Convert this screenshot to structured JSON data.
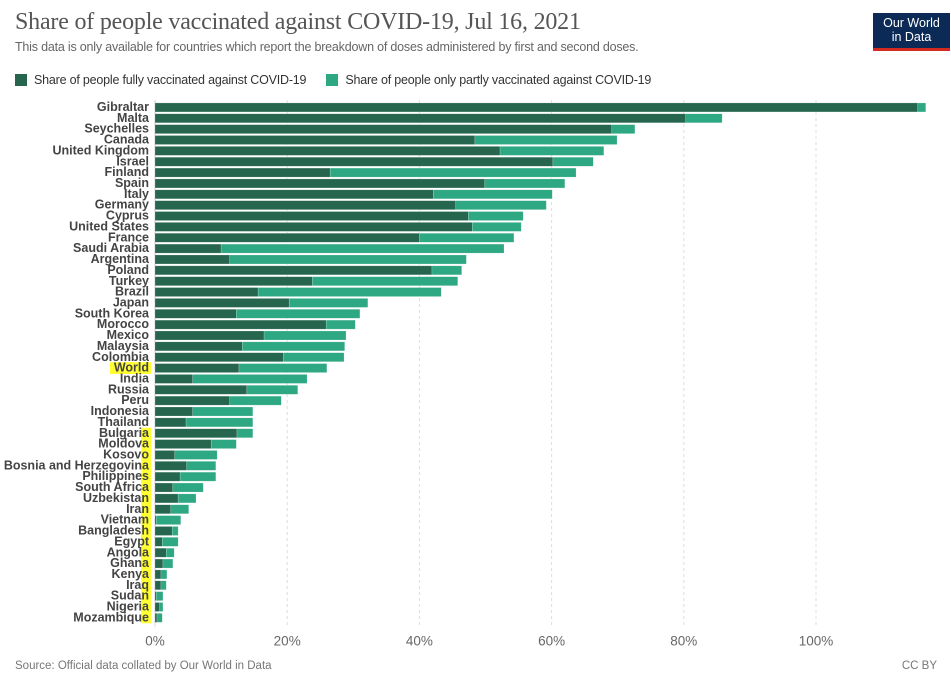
{
  "header": {
    "title": "Share of people vaccinated against COVID-19, Jul 16, 2021",
    "subtitle": "This data is only available for countries which report the breakdown of doses administered by first and second doses.",
    "logo_line1": "Our World",
    "logo_line2": "in Data",
    "logo_colors": {
      "background": "#0b2a56",
      "underline": "#d42b21"
    }
  },
  "footer": {
    "source": "Source: Official data collated by Our World in Data",
    "license": "CC BY"
  },
  "highlight_color": "#ffff33",
  "chart_data": {
    "type": "bar",
    "orientation": "horizontal",
    "stacked": true,
    "title": "Share of people vaccinated against COVID-19, Jul 16, 2021",
    "xlabel": "",
    "ylabel": "",
    "xlim": [
      0,
      117
    ],
    "xticks": [
      0,
      20,
      40,
      60,
      80,
      100
    ],
    "xtick_labels": [
      "0%",
      "20%",
      "40%",
      "60%",
      "80%",
      "100%"
    ],
    "grid": "vertical dashed",
    "legend_position": "top-left",
    "categories": [
      "Gibraltar",
      "Malta",
      "Seychelles",
      "Canada",
      "United Kingdom",
      "Israel",
      "Finland",
      "Spain",
      "Italy",
      "Germany",
      "Cyprus",
      "United States",
      "France",
      "Saudi Arabia",
      "Argentina",
      "Poland",
      "Turkey",
      "Brazil",
      "Japan",
      "South Korea",
      "Morocco",
      "Mexico",
      "Malaysia",
      "Colombia",
      "World",
      "India",
      "Russia",
      "Peru",
      "Indonesia",
      "Thailand",
      "Bulgaria",
      "Moldova",
      "Kosovo",
      "Bosnia and Herzegovina",
      "Philippines",
      "South Africa",
      "Uzbekistan",
      "Iran",
      "Vietnam",
      "Bangladesh",
      "Egypt",
      "Angola",
      "Ghana",
      "Kenya",
      "Iraq",
      "Sudan",
      "Nigeria",
      "Mozambique"
    ],
    "series": [
      {
        "name": "Share of people fully vaccinated against COVID-19",
        "color": "#26664f",
        "values": [
          115.4,
          80.3,
          69.1,
          48.4,
          52.2,
          60.2,
          26.5,
          49.9,
          42.1,
          45.5,
          47.4,
          48.0,
          40.0,
          10.0,
          11.3,
          41.9,
          23.8,
          15.6,
          20.3,
          12.3,
          25.9,
          16.5,
          13.2,
          19.4,
          12.7,
          5.7,
          13.9,
          11.3,
          5.7,
          4.7,
          12.4,
          8.5,
          3.0,
          4.8,
          3.8,
          2.7,
          3.5,
          2.4,
          0.2,
          2.6,
          1.1,
          1.7,
          1.2,
          0.9,
          0.9,
          0.2,
          0.7,
          0.3
        ]
      },
      {
        "name": "Share of people only partly vaccinated against COVID-19",
        "color": "#2ea882",
        "values": [
          1.2,
          5.5,
          3.5,
          21.5,
          15.7,
          6.1,
          37.2,
          12.1,
          18.0,
          13.7,
          8.3,
          7.4,
          14.3,
          42.8,
          35.8,
          4.5,
          22.0,
          27.7,
          11.9,
          18.7,
          4.4,
          12.4,
          15.5,
          9.2,
          13.3,
          17.3,
          7.7,
          7.8,
          9.1,
          10.1,
          2.4,
          3.8,
          6.4,
          4.4,
          5.4,
          4.6,
          2.7,
          2.7,
          3.7,
          0.9,
          2.4,
          1.2,
          1.5,
          0.9,
          0.8,
          1.0,
          0.5,
          0.8
        ]
      }
    ],
    "highlighted_categories": [
      "World"
    ]
  }
}
